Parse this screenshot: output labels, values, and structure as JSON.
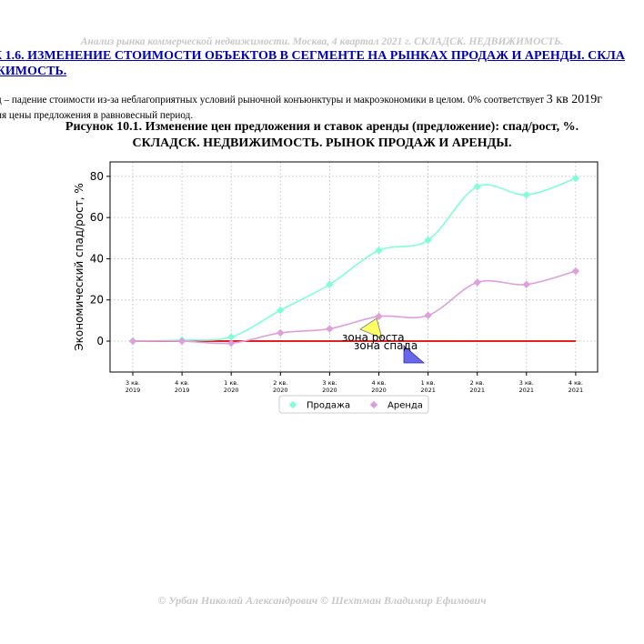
{
  "doc_header": "Анализ рынка коммерческой недвижимости. Москва, 4 квартал 2021 г. СКЛАДСК. НЕДВИЖИМОСТЬ.",
  "section_title": {
    "line1": "К 1.6. ИЗМЕНЕНИЕ СТОИМОСТИ ОБЪЕКТОВ В СЕГМЕНТЕ НА РЫНКАХ ПРОДАЖ И АРЕНДЫ. СКЛА",
    "line2": "ЖИМОСТЬ."
  },
  "note": {
    "line1_start": "д – падение стоимости из-за неблагоприятных условий рыночной конъюнктуры и макроэкономики в целом. 0% соответствует ",
    "line1_big": "3 кв 2019г",
    "line2": "ия цены предложения в равновесный период."
  },
  "figure_caption": {
    "line1": "Рисунок 10.1. Изменение цен предложения и ставок аренды (предложение): спад/рост, %.",
    "line2": "СКЛАДСК. НЕДВИЖИМОСТЬ. РЫНОК ПРОДАЖ И АРЕНДЫ."
  },
  "footer": "© Урбан Николай Александрович © Шехтман Владимир Ефимович",
  "chart_data": {
    "type": "line",
    "categories": [
      "3 кв.\n2019",
      "4 кв.\n2019",
      "1 кв.\n2020",
      "2 кв.\n2020",
      "3 кв.\n2020",
      "4 кв.\n2020",
      "1 кв.\n2021",
      "2 кв.\n2021",
      "3 кв.\n2021",
      "4 кв.\n2021"
    ],
    "series": [
      {
        "name": "Продажа",
        "color": "#7fffd4",
        "marker": "diamond",
        "values": [
          0,
          0.5,
          2,
          15,
          27.5,
          44,
          49,
          75,
          71,
          79
        ]
      },
      {
        "name": "Аренда",
        "color": "#dda0dd",
        "marker": "diamond",
        "values": [
          0,
          0,
          -1,
          4,
          6,
          12,
          12.5,
          28.5,
          27.5,
          34
        ]
      }
    ],
    "ylabel": "Экономический спад/рост, %",
    "xlabel": "",
    "ylim": [
      -15,
      87
    ],
    "yticks": [
      0,
      20,
      40,
      60,
      80
    ],
    "grid": true,
    "zero_line_color": "#e00000",
    "legend_position": "bottom-center",
    "annotations": [
      {
        "text": "зона роста",
        "marker": "up-triangle",
        "color": "#ffff66"
      },
      {
        "text": "зона спада",
        "marker": "down-triangle",
        "color": "#6666ee"
      }
    ]
  }
}
